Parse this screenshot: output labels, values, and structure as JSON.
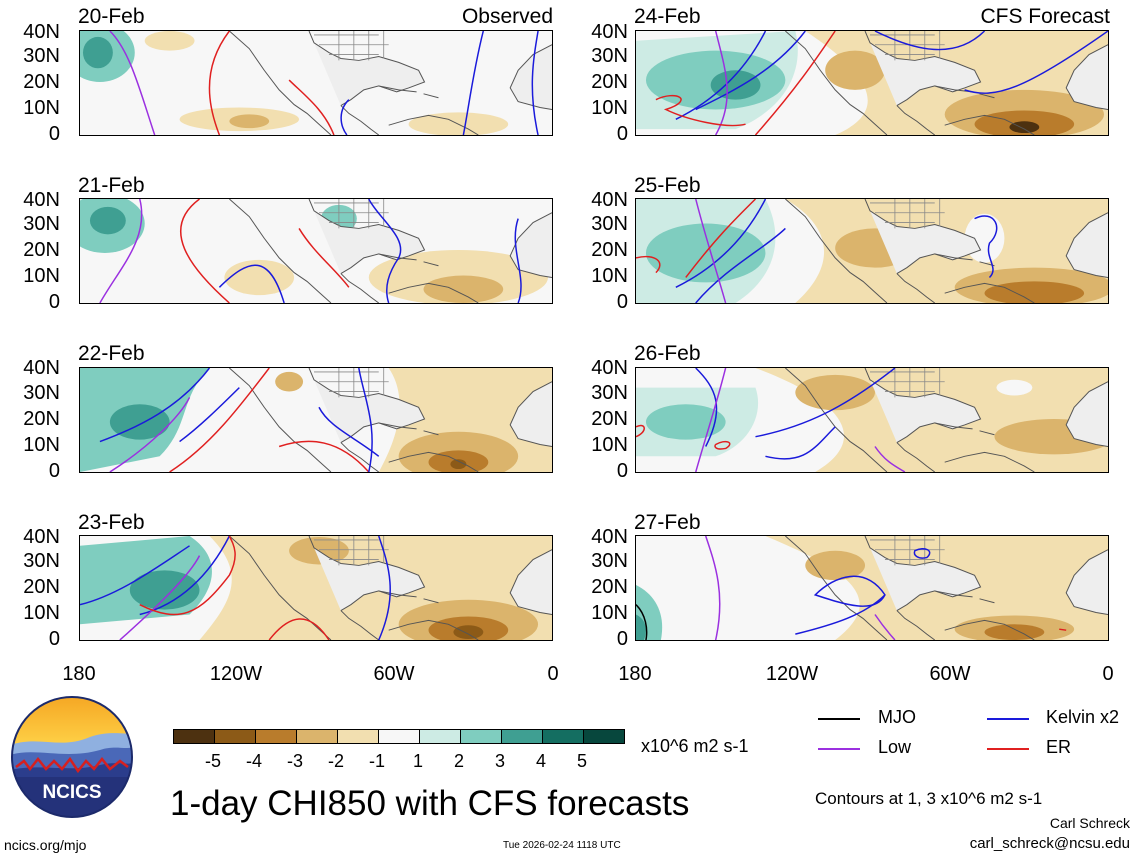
{
  "headers": {
    "observed": "Observed",
    "forecast": "CFS Forecast"
  },
  "panels": {
    "left": [
      {
        "date": "20-Feb"
      },
      {
        "date": "21-Feb"
      },
      {
        "date": "22-Feb"
      },
      {
        "date": "23-Feb"
      }
    ],
    "right": [
      {
        "date": "24-Feb"
      },
      {
        "date": "25-Feb"
      },
      {
        "date": "26-Feb"
      },
      {
        "date": "27-Feb"
      }
    ]
  },
  "lat_labels": [
    "40N",
    "30N",
    "20N",
    "10N",
    "0"
  ],
  "lon_labels": [
    "180",
    "120W",
    "60W",
    "0"
  ],
  "colorbar": {
    "ticks": [
      "-5",
      "-4",
      "-3",
      "-2",
      "-1",
      "1",
      "2",
      "3",
      "4",
      "5"
    ],
    "colors": [
      "#4d3110",
      "#8c5a17",
      "#b97c2c",
      "#dbb46c",
      "#f2dfb0",
      "#f7f7f7",
      "#cdebe4",
      "#7fcdbf",
      "#3f9f92",
      "#146e61",
      "#07473d"
    ],
    "units": "x10^6 m2 s-1"
  },
  "legend": {
    "mjo": {
      "label": "MJO",
      "color": "#000000"
    },
    "kelvin": {
      "label": "Kelvin x2",
      "color": "#1a1adb"
    },
    "low": {
      "label": "Low",
      "color": "#9b30e0"
    },
    "er": {
      "label": "ER",
      "color": "#e02020"
    }
  },
  "title": "1-day CHI850 with CFS forecasts",
  "contour_note": "Contours at 1, 3 x10^6 m2 s-1",
  "author": "Carl Schreck",
  "email": "carl_schreck@ncsu.edu",
  "site": "ncics.org/mjo",
  "timestamp": "Tue 2026-02-24 1118 UTC",
  "logo_text": "NCICS"
}
